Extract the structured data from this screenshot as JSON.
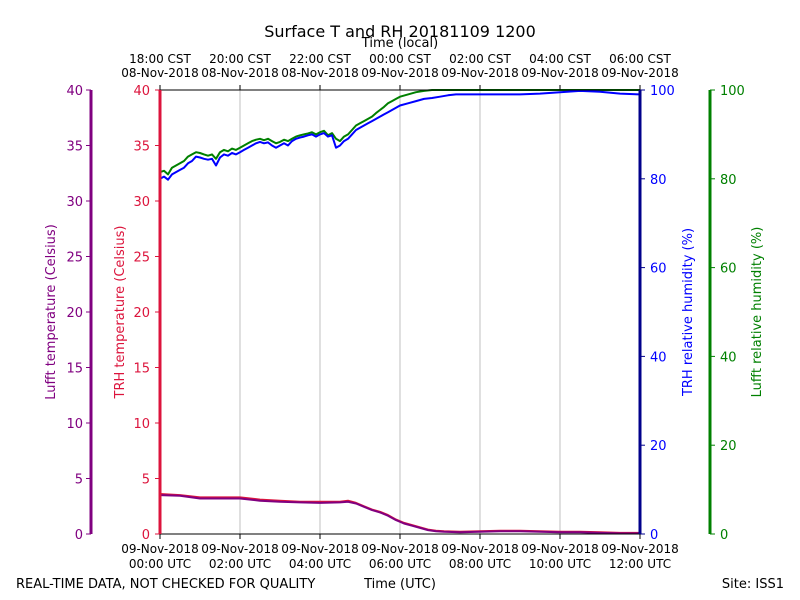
{
  "title": "Surface T and RH 20181109 1200",
  "footer": {
    "left": "REAL-TIME DATA, NOT CHECKED FOR QUALITY",
    "center": "Time (UTC)",
    "right": "Site: ISS1"
  },
  "colors": {
    "lufft_temp": "#800080",
    "trh_temp": "#dc143c",
    "trh_rh": "#0000ff",
    "lufft_rh": "#008000",
    "lufft_temp_axis": "#800080",
    "trh_temp_axis": "#dc143c",
    "trh_rh_axis": "#00008b",
    "lufft_rh_axis": "#008000",
    "grid": "#b0b0b0"
  },
  "chart_data": {
    "type": "line",
    "title": "Surface T and RH 20181109 1200",
    "x_unit": "hours since 09-Nov-2018 00:00 UTC",
    "xlim": [
      0,
      12
    ],
    "top_axis_label": "Time (local)",
    "bottom_axis_label": "Time (UTC)",
    "top_ticks": [
      {
        "x": 0,
        "line1": "18:00 CST",
        "line2": "08-Nov-2018"
      },
      {
        "x": 2,
        "line1": "20:00 CST",
        "line2": "08-Nov-2018"
      },
      {
        "x": 4,
        "line1": "22:00 CST",
        "line2": "08-Nov-2018"
      },
      {
        "x": 6,
        "line1": "00:00 CST",
        "line2": "09-Nov-2018"
      },
      {
        "x": 8,
        "line1": "02:00 CST",
        "line2": "09-Nov-2018"
      },
      {
        "x": 10,
        "line1": "04:00 CST",
        "line2": "09-Nov-2018"
      },
      {
        "x": 12,
        "line1": "06:00 CST",
        "line2": "09-Nov-2018"
      }
    ],
    "bottom_ticks": [
      {
        "x": 0,
        "line1": "09-Nov-2018",
        "line2": "00:00 UTC"
      },
      {
        "x": 2,
        "line1": "09-Nov-2018",
        "line2": "02:00 UTC"
      },
      {
        "x": 4,
        "line1": "09-Nov-2018",
        "line2": "04:00 UTC"
      },
      {
        "x": 6,
        "line1": "09-Nov-2018",
        "line2": "06:00 UTC"
      },
      {
        "x": 8,
        "line1": "09-Nov-2018",
        "line2": "08:00 UTC"
      },
      {
        "x": 10,
        "line1": "09-Nov-2018",
        "line2": "10:00 UTC"
      },
      {
        "x": 12,
        "line1": "09-Nov-2018",
        "line2": "12:00 UTC"
      }
    ],
    "axes": {
      "lufft_temp": {
        "label": "Lufft temperature (Celsius)",
        "ylim": [
          0,
          40
        ],
        "ticks": [
          "0",
          "5",
          "10",
          "15",
          "20",
          "25",
          "30",
          "35",
          "40"
        ]
      },
      "trh_temp": {
        "label": "TRH temperature (Celsius)",
        "ylim": [
          0,
          40
        ],
        "ticks": [
          "0",
          "5",
          "10",
          "15",
          "20",
          "25",
          "30",
          "35",
          "40"
        ]
      },
      "trh_rh": {
        "label": "TRH relative humidity (%)",
        "ylim": [
          0,
          100
        ],
        "ticks": [
          "0",
          "20",
          "40",
          "60",
          "80",
          "100"
        ]
      },
      "lufft_rh": {
        "label": "Lufft relative humidity (%)",
        "ylim": [
          0,
          100
        ],
        "ticks": [
          "0",
          "20",
          "40",
          "60",
          "80",
          "100"
        ]
      }
    },
    "series": [
      {
        "name": "Lufft relative humidity",
        "key": "lufft_rh",
        "axis": "lufft_rh",
        "x": [
          0,
          0.1,
          0.2,
          0.3,
          0.4,
          0.5,
          0.6,
          0.7,
          0.8,
          0.9,
          1.0,
          1.1,
          1.2,
          1.3,
          1.4,
          1.5,
          1.6,
          1.7,
          1.8,
          1.9,
          2.0,
          2.1,
          2.2,
          2.3,
          2.4,
          2.5,
          2.6,
          2.7,
          2.8,
          2.9,
          3.0,
          3.1,
          3.2,
          3.3,
          3.4,
          3.5,
          3.6,
          3.7,
          3.8,
          3.9,
          4.0,
          4.1,
          4.2,
          4.3,
          4.4,
          4.5,
          4.6,
          4.7,
          4.8,
          4.9,
          5.0,
          5.1,
          5.2,
          5.3,
          5.4,
          5.5,
          5.6,
          5.7,
          5.8,
          5.9,
          6.0,
          6.2,
          6.4,
          6.6,
          6.8,
          7.0,
          7.2,
          7.4,
          7.6,
          7.8,
          8.0,
          8.5,
          9.0,
          9.5,
          10.0,
          10.5,
          11.0,
          11.5,
          12.0
        ],
        "y": [
          81.5,
          81.8,
          81.0,
          82.5,
          83.0,
          83.5,
          84.0,
          85.0,
          85.5,
          86.0,
          85.8,
          85.5,
          85.2,
          85.5,
          84.5,
          86.0,
          86.5,
          86.2,
          86.8,
          86.5,
          87.0,
          87.5,
          88.0,
          88.5,
          88.8,
          89.0,
          88.7,
          89.0,
          88.5,
          88.0,
          88.3,
          88.8,
          88.5,
          89.0,
          89.5,
          89.8,
          90.0,
          90.2,
          90.5,
          90.0,
          90.5,
          90.8,
          89.8,
          90.3,
          89.0,
          88.5,
          89.5,
          90.0,
          91.0,
          92.0,
          92.5,
          93.0,
          93.5,
          94.0,
          94.8,
          95.5,
          96.2,
          97.0,
          97.5,
          98.0,
          98.5,
          99.0,
          99.5,
          99.8,
          100.0,
          100.0,
          100.0,
          100.0,
          100.0,
          100.0,
          100.0,
          100.0,
          100.0,
          100.0,
          100.0,
          100.0,
          100.0,
          100.0,
          100.0
        ]
      },
      {
        "name": "TRH relative humidity",
        "key": "trh_rh",
        "axis": "trh_rh",
        "x": [
          0,
          0.1,
          0.2,
          0.3,
          0.4,
          0.5,
          0.6,
          0.7,
          0.8,
          0.9,
          1.0,
          1.1,
          1.2,
          1.3,
          1.4,
          1.5,
          1.6,
          1.7,
          1.8,
          1.9,
          2.0,
          2.1,
          2.2,
          2.3,
          2.4,
          2.5,
          2.6,
          2.7,
          2.8,
          2.9,
          3.0,
          3.1,
          3.2,
          3.3,
          3.4,
          3.5,
          3.6,
          3.7,
          3.8,
          3.9,
          4.0,
          4.1,
          4.2,
          4.3,
          4.4,
          4.5,
          4.6,
          4.7,
          4.8,
          4.9,
          5.0,
          5.1,
          5.2,
          5.3,
          5.4,
          5.5,
          5.6,
          5.7,
          5.8,
          5.9,
          6.0,
          6.2,
          6.4,
          6.6,
          6.8,
          7.0,
          7.2,
          7.4,
          7.6,
          7.8,
          8.0,
          8.5,
          9.0,
          9.5,
          10.0,
          10.5,
          11.0,
          11.5,
          12.0
        ],
        "y": [
          80.0,
          80.5,
          79.8,
          81.0,
          81.5,
          82.0,
          82.5,
          83.5,
          84.0,
          85.0,
          84.8,
          84.5,
          84.3,
          84.5,
          83.0,
          84.8,
          85.5,
          85.2,
          85.8,
          85.5,
          86.0,
          86.5,
          87.0,
          87.5,
          88.0,
          88.3,
          88.0,
          88.2,
          87.5,
          87.0,
          87.5,
          88.0,
          87.5,
          88.5,
          89.0,
          89.3,
          89.5,
          89.8,
          90.0,
          89.5,
          90.0,
          90.3,
          89.5,
          89.8,
          87.0,
          87.5,
          88.5,
          89.0,
          90.0,
          91.0,
          91.5,
          92.0,
          92.5,
          93.0,
          93.5,
          94.0,
          94.5,
          95.0,
          95.5,
          96.0,
          96.5,
          97.0,
          97.5,
          98.0,
          98.2,
          98.5,
          98.8,
          99.0,
          99.0,
          99.0,
          99.0,
          99.0,
          99.0,
          99.2,
          99.5,
          99.8,
          99.6,
          99.2,
          99.0
        ]
      },
      {
        "name": "TRH temperature",
        "key": "trh_temp",
        "axis": "trh_temp",
        "x": [
          0,
          0.5,
          1.0,
          1.5,
          2.0,
          2.5,
          3.0,
          3.5,
          4.0,
          4.5,
          4.7,
          4.9,
          5.1,
          5.3,
          5.5,
          5.7,
          5.9,
          6.1,
          6.3,
          6.5,
          6.7,
          6.9,
          7.1,
          7.5,
          8.0,
          8.5,
          9.0,
          9.5,
          10.0,
          10.5,
          11.0,
          11.5,
          12.0
        ],
        "y": [
          3.6,
          3.5,
          3.3,
          3.3,
          3.3,
          3.1,
          3.0,
          2.9,
          2.9,
          2.9,
          3.0,
          2.8,
          2.5,
          2.2,
          2.0,
          1.7,
          1.3,
          1.0,
          0.8,
          0.6,
          0.4,
          0.3,
          0.25,
          0.2,
          0.25,
          0.3,
          0.3,
          0.25,
          0.2,
          0.2,
          0.15,
          0.1,
          0.1
        ]
      },
      {
        "name": "Lufft temperature",
        "key": "lufft_temp",
        "axis": "lufft_temp",
        "x": [
          0,
          0.5,
          1.0,
          1.5,
          2.0,
          2.5,
          3.0,
          3.5,
          4.0,
          4.5,
          4.7,
          4.9,
          5.1,
          5.3,
          5.5,
          5.7,
          5.9,
          6.1,
          6.3,
          6.5,
          6.7,
          6.9,
          7.1,
          7.5,
          8.0,
          8.5,
          9.0,
          9.5,
          10.0,
          10.5,
          11.0,
          11.5,
          12.0
        ],
        "y": [
          3.5,
          3.45,
          3.2,
          3.2,
          3.2,
          3.0,
          2.9,
          2.85,
          2.8,
          2.85,
          2.9,
          2.75,
          2.45,
          2.15,
          1.95,
          1.65,
          1.25,
          0.95,
          0.75,
          0.55,
          0.35,
          0.25,
          0.2,
          0.15,
          0.2,
          0.25,
          0.25,
          0.2,
          0.15,
          0.15,
          0.1,
          0.05,
          0.05
        ]
      }
    ]
  }
}
